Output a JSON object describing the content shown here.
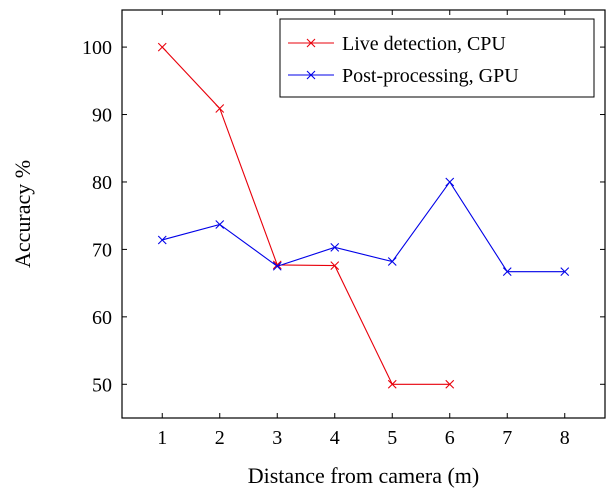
{
  "chart_data": {
    "type": "line",
    "xlabel": "Distance from camera (m)",
    "ylabel": "Accuracy %",
    "xlim": [
      0.3,
      8.7
    ],
    "ylim": [
      45,
      105.5
    ],
    "xticks": [
      1,
      2,
      3,
      4,
      5,
      6,
      7,
      8
    ],
    "yticks": [
      50,
      60,
      70,
      80,
      90,
      100
    ],
    "legend_position": "top-right",
    "grid": false,
    "marker": "x",
    "series": [
      {
        "name": "Live detection, CPU",
        "color": "#e8000b",
        "x": [
          1,
          2,
          3,
          4,
          5,
          6
        ],
        "y": [
          100,
          90.9,
          67.7,
          67.6,
          50,
          50
        ]
      },
      {
        "name": "Post-processing, GPU",
        "color": "#0000e8",
        "x": [
          1,
          2,
          3,
          4,
          5,
          6,
          7,
          8
        ],
        "y": [
          71.4,
          73.7,
          67.5,
          70.3,
          68.2,
          80,
          66.7,
          66.7
        ]
      }
    ]
  }
}
